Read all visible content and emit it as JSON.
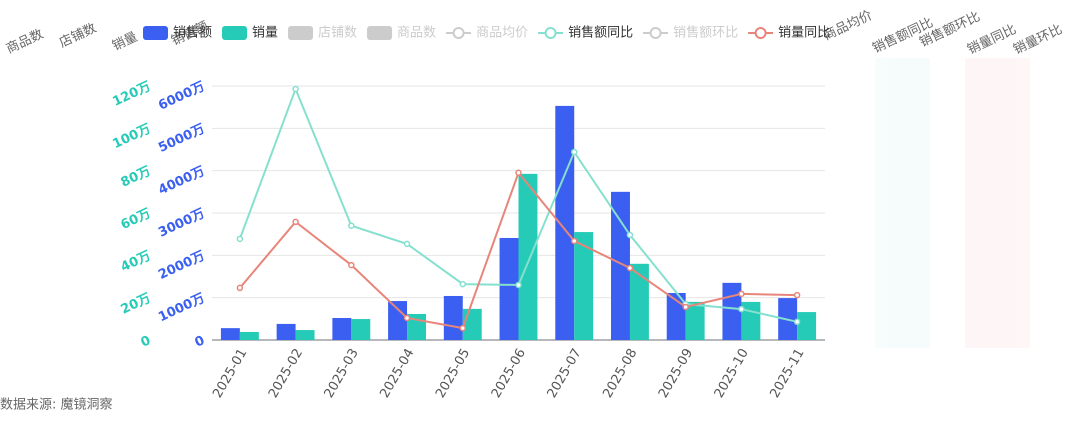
{
  "chart_data": {
    "type": "bar",
    "categories": [
      "2025-01",
      "2025-02",
      "2025-03",
      "2025-04",
      "2025-05",
      "2025-06",
      "2025-07",
      "2025-08",
      "2025-09",
      "2025-10",
      "2025-11"
    ],
    "series": [
      {
        "name": "销售额",
        "type": "bar",
        "icon": "rect",
        "color": "#3b5ff0",
        "axis": "y",
        "values": [
          280,
          380,
          520,
          920,
          1040,
          2410,
          5530,
          3500,
          1110,
          1350,
          990
        ]
      },
      {
        "name": "销量",
        "type": "bar",
        "icon": "rect",
        "color": "#26cbb8",
        "axis": "y2",
        "values": [
          3.8,
          4.7,
          9.9,
          12.3,
          14.7,
          78.5,
          51,
          36,
          18,
          18,
          13.2
        ]
      },
      {
        "name": "店铺数",
        "type": "bar",
        "icon": "rect",
        "color": "#cccccc",
        "hidden": true
      },
      {
        "name": "商品数",
        "type": "bar",
        "icon": "rect",
        "color": "#cccccc",
        "hidden": true
      },
      {
        "name": "商品均价",
        "type": "line",
        "icon": "line",
        "color": "#cccccc",
        "hidden": true
      },
      {
        "name": "销售额同比",
        "type": "line",
        "icon": "line",
        "color": "#86e0cf",
        "axis": "y",
        "values": [
          2390,
          5930,
          2700,
          2270,
          1320,
          1300,
          4440,
          2480,
          850,
          730,
          430
        ]
      },
      {
        "name": "销售额环比",
        "type": "line",
        "icon": "line",
        "color": "#cccccc",
        "hidden": true
      },
      {
        "name": "销量同比",
        "type": "line",
        "icon": "line",
        "color": "#e8857a",
        "axis": "y",
        "values": [
          1230,
          2790,
          1770,
          520,
          280,
          3950,
          2340,
          1700,
          780,
          1090,
          1060
        ]
      }
    ],
    "ylim": [
      0,
      6000
    ],
    "yticks": [
      0,
      {
        "value": 1000,
        "label": "1000万"
      },
      {
        "value": 2000,
        "label": "2000万"
      },
      {
        "value": 3000,
        "label": "3000万"
      },
      {
        "value": 4000,
        "label": "4000万"
      },
      {
        "value": 5000,
        "label": "5000万"
      },
      {
        "value": 6000,
        "label": "6000万"
      }
    ],
    "y2lim": [
      0,
      120
    ],
    "y2ticks": [
      0,
      {
        "value": 20,
        "label": "20万"
      },
      {
        "value": 40,
        "label": "40万"
      },
      {
        "value": 60,
        "label": "60万"
      },
      {
        "value": 80,
        "label": "80万"
      },
      {
        "value": 100,
        "label": "100万"
      },
      {
        "value": 120,
        "label": "120万"
      }
    ],
    "grid": true,
    "axis_names_left": [
      "商品数",
      "店铺数",
      "销量",
      "销售额"
    ],
    "axis_names_right": [
      "商品均价",
      "销售额同比",
      "销售额环比",
      "销量同比",
      "销量环比"
    ],
    "source": "数据来源: 魔镜洞察"
  }
}
